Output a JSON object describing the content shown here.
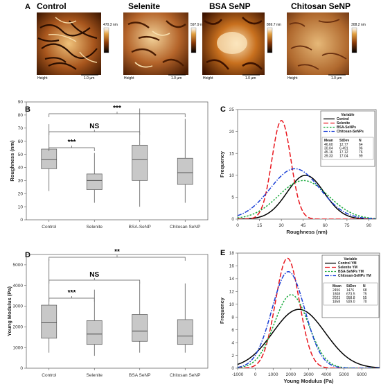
{
  "panel_letters": [
    "A",
    "B",
    "C",
    "D",
    "E"
  ],
  "afm_images": [
    {
      "title": "Control",
      "scale_label": "470.3 nm",
      "height_label": "Height",
      "bar_label": "1.0 µm",
      "colors": [
        "#3a1500",
        "#a0521c",
        "#f4d7a0"
      ]
    },
    {
      "title": "Selenite",
      "scale_label": "597.9 nm",
      "height_label": "Height",
      "bar_label": "1.0 µm",
      "colors": [
        "#4a1c02",
        "#b4642a",
        "#f7dfae"
      ]
    },
    {
      "title": "BSA SeNP",
      "scale_label": "869.7 nm",
      "height_label": "Height",
      "bar_label": "1.0 µm",
      "colors": [
        "#3c1200",
        "#b35a20",
        "#fbe6bd"
      ]
    },
    {
      "title": "Chitosan SeNP",
      "scale_label": "308.2 nm",
      "height_label": "Height",
      "bar_label": "1.0 µm",
      "colors": [
        "#5a260a",
        "#b8743a",
        "#ecc894"
      ]
    }
  ],
  "chart_data": [
    {
      "id": "B",
      "type": "boxplot",
      "ylabel": "Roughness (nm)",
      "ylim": [
        0,
        90
      ],
      "yticks": [
        0,
        10,
        20,
        30,
        40,
        50,
        60,
        70,
        80,
        90
      ],
      "categories": [
        "Control",
        "Selenite",
        "BSA-SeNP",
        "Chitosan SeNP"
      ],
      "boxes": [
        {
          "min": 22,
          "q1": 39,
          "median": 46,
          "q3": 54,
          "max": 73
        },
        {
          "min": 13,
          "q1": 23,
          "median": 30,
          "q3": 35,
          "max": 51
        },
        {
          "min": 10,
          "q1": 30,
          "median": 46,
          "q3": 57,
          "max": 85
        },
        {
          "min": 13,
          "q1": 27,
          "median": 36,
          "q3": 47,
          "max": 77
        }
      ],
      "brackets": [
        {
          "from": 0,
          "to": 1,
          "label": "***"
        },
        {
          "from": 0,
          "to": 2,
          "label": "NS"
        },
        {
          "from": 0,
          "to": 3,
          "label": "***"
        }
      ]
    },
    {
      "id": "C",
      "type": "line",
      "xlabel": "Roughness (nm)",
      "ylabel": "Frequency",
      "xlim": [
        0,
        95
      ],
      "xticks": [
        0,
        15,
        30,
        45,
        60,
        75,
        90
      ],
      "ylim": [
        0,
        25
      ],
      "yticks": [
        0,
        5,
        10,
        15,
        20,
        25
      ],
      "legend_title": "Variable",
      "legend_table_headers": [
        "Mean",
        "StDev",
        "N"
      ],
      "series": [
        {
          "name": "Control",
          "color": "#000000",
          "dash": "",
          "mean": 46.6,
          "sd": 12.77,
          "n": 64,
          "peak": 10.0,
          "mean_label": "46.60",
          "sd_label": "12.77",
          "n_label": "64"
        },
        {
          "name": "Selenite",
          "color": "#e8141c",
          "dash": "7,3",
          "mean": 30.04,
          "sd": 6.491,
          "n": 96,
          "peak": 22.5,
          "mean_label": "30.04",
          "sd_label": "6.491",
          "n_label": "96"
        },
        {
          "name": "BSA-SeNPs",
          "color": "#1aaa3c",
          "dash": "2.5,2",
          "mean": 45.16,
          "sd": 17.12,
          "n": 76,
          "peak": 8.8,
          "mean_label": "45.16",
          "sd_label": "17.12",
          "n_label": "76"
        },
        {
          "name": "Chitosan-SeNPs",
          "color": "#1a3fd6",
          "dash": "6,2,1.5,2",
          "mean": 39.33,
          "sd": 17.04,
          "n": 99,
          "peak": 11.5,
          "mean_label": "39.33",
          "sd_label": "17.04",
          "n_label": "99"
        }
      ]
    },
    {
      "id": "D",
      "type": "boxplot",
      "ylabel": "Young Modulus (Pa)",
      "ylim": [
        0,
        5500
      ],
      "yticks": [
        0,
        1000,
        2000,
        3000,
        4000,
        5000
      ],
      "categories": [
        "Control",
        "Selenite",
        "BSA SeNP",
        "Chitosan SeNP"
      ],
      "boxes": [
        {
          "min": 750,
          "q1": 1450,
          "median": 2200,
          "q3": 3050,
          "max": 5300
        },
        {
          "min": 600,
          "q1": 1150,
          "median": 1650,
          "q3": 2300,
          "max": 3800
        },
        {
          "min": 750,
          "q1": 1300,
          "median": 1800,
          "q3": 2600,
          "max": 4200
        },
        {
          "min": 750,
          "q1": 1150,
          "median": 1550,
          "q3": 2350,
          "max": 4100
        }
      ],
      "brackets": [
        {
          "from": 0,
          "to": 1,
          "label": "***"
        },
        {
          "from": 0,
          "to": 2,
          "label": "NS"
        },
        {
          "from": 0,
          "to": 3,
          "label": "**"
        }
      ]
    },
    {
      "id": "E",
      "type": "line",
      "xlabel": "Young Modulus (Pa)",
      "ylabel": "Frequency",
      "xlim": [
        -1000,
        7000
      ],
      "xticks": [
        -1000,
        0,
        1000,
        2000,
        3000,
        4000,
        5000,
        6000
      ],
      "ylim": [
        0,
        18
      ],
      "yticks": [
        0,
        2,
        4,
        6,
        8,
        10,
        12,
        14,
        16,
        18
      ],
      "legend_title": "Variable",
      "legend_table_headers": [
        "Mean",
        "StDev",
        "N"
      ],
      "series": [
        {
          "name": "Control YM",
          "color": "#000000",
          "dash": "",
          "mean": 2456,
          "sd": 1476,
          "n": 68,
          "peak": 9.2,
          "mean_label": "2456",
          "sd_label": "1476",
          "n_label": "68"
        },
        {
          "name": "Selenite YM",
          "color": "#e8141c",
          "dash": "7,3",
          "mean": 1808,
          "sd": 673.5,
          "n": 75,
          "peak": 17.2,
          "mean_label": "1808",
          "sd_label": "673.5",
          "n_label": "75"
        },
        {
          "name": "BSA-SeNPs YM",
          "color": "#1aaa3c",
          "dash": "2.5,2",
          "mean": 2023,
          "sd": 958.8,
          "n": 55,
          "peak": 11.5,
          "mean_label": "2023",
          "sd_label": "958.8",
          "n_label": "55"
        },
        {
          "name": "Chitosan-SeNPs YM",
          "color": "#1a3fd6",
          "dash": "6,2,1.5,2",
          "mean": 1858,
          "sd": 929.0,
          "n": 70,
          "peak": 15.1,
          "mean_label": "1858",
          "sd_label": "929.0",
          "n_label": "70"
        }
      ]
    }
  ]
}
